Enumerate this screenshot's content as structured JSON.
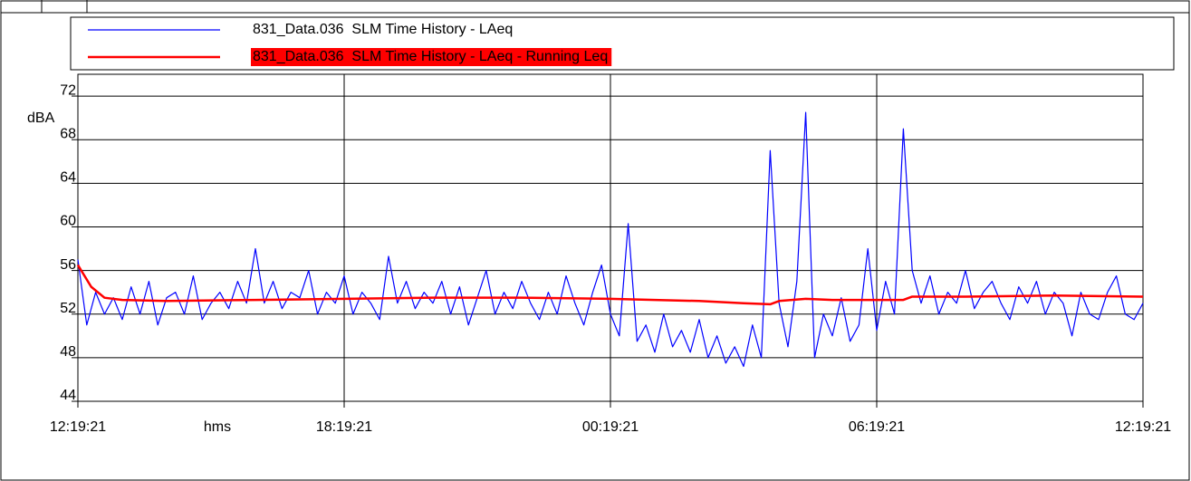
{
  "chart_data": {
    "type": "line",
    "xlabel": "hms",
    "ylabel": "dBA",
    "xlim": [
      0,
      24
    ],
    "xticks": [
      {
        "value": 0,
        "label": "12:19:21"
      },
      {
        "value": 6,
        "label": "18:19:21"
      },
      {
        "value": 12,
        "label": "00:19:21"
      },
      {
        "value": 18,
        "label": "06:19:21"
      },
      {
        "value": 24,
        "label": "12:19:21"
      }
    ],
    "ylim": [
      44,
      74
    ],
    "yticks": [
      44,
      48,
      52,
      56,
      60,
      64,
      68,
      72
    ],
    "grid": true,
    "legend": "top",
    "series": [
      {
        "name": "831_Data.036  SLM Time History - LAeq",
        "color": "#0000ff",
        "x": [
          0,
          0.2,
          0.4,
          0.6,
          0.8,
          1,
          1.2,
          1.4,
          1.6,
          1.8,
          2,
          2.2,
          2.4,
          2.6,
          2.8,
          3,
          3.2,
          3.4,
          3.6,
          3.8,
          4,
          4.2,
          4.4,
          4.6,
          4.8,
          5,
          5.2,
          5.4,
          5.6,
          5.8,
          6,
          6.2,
          6.4,
          6.6,
          6.8,
          7,
          7.2,
          7.4,
          7.6,
          7.8,
          8,
          8.2,
          8.4,
          8.6,
          8.8,
          9,
          9.2,
          9.4,
          9.6,
          9.8,
          10,
          10.2,
          10.4,
          10.6,
          10.8,
          11,
          11.2,
          11.4,
          11.6,
          11.8,
          12,
          12.2,
          12.4,
          12.6,
          12.8,
          13,
          13.2,
          13.4,
          13.6,
          13.8,
          14,
          14.2,
          14.4,
          14.6,
          14.8,
          15,
          15.2,
          15.4,
          15.6,
          15.8,
          16,
          16.2,
          16.4,
          16.6,
          16.8,
          17,
          17.2,
          17.4,
          17.6,
          17.8,
          18,
          18.2,
          18.4,
          18.6,
          18.8,
          19,
          19.2,
          19.4,
          19.6,
          19.8,
          20,
          20.2,
          20.4,
          20.6,
          20.8,
          21,
          21.2,
          21.4,
          21.6,
          21.8,
          22,
          22.2,
          22.4,
          22.6,
          22.8,
          23,
          23.2,
          23.4,
          23.6,
          23.8,
          24
        ],
        "values": [
          57,
          51,
          54,
          52,
          53.5,
          51.5,
          54.5,
          52,
          55,
          51,
          53.5,
          54,
          52,
          55.5,
          51.5,
          53,
          54,
          52.5,
          55,
          53,
          58,
          53,
          55,
          52.5,
          54,
          53.5,
          56,
          52,
          54,
          53,
          55.5,
          52,
          54,
          53,
          51.5,
          57.3,
          53,
          55,
          52.5,
          54,
          53,
          55,
          52,
          54.5,
          51,
          53.5,
          56,
          52,
          54,
          52.5,
          55,
          53,
          51.5,
          54,
          52,
          55.5,
          53,
          51,
          54,
          56.5,
          52,
          50,
          60.3,
          49.5,
          51,
          48.5,
          52,
          49,
          50.5,
          48.5,
          51.5,
          48,
          50,
          47.5,
          49,
          47.2,
          51,
          48,
          67,
          53,
          49,
          55,
          70.5,
          48,
          52,
          50,
          53.5,
          49.5,
          51,
          58,
          50.5,
          55,
          52,
          69,
          56,
          53,
          55.5,
          52,
          54,
          53,
          56,
          52.5,
          54,
          55,
          53,
          51.5,
          54.5,
          53,
          55,
          52,
          54,
          53,
          50,
          54,
          52,
          51.5,
          54,
          55.5,
          52,
          51.5,
          53
        ]
      },
      {
        "name": "831_Data.036  SLM Time History - LAeq - Running Leq",
        "color": "#ff0000",
        "x": [
          0,
          0.3,
          0.6,
          1,
          2,
          4,
          6,
          8,
          10,
          12,
          13,
          14,
          15,
          15.6,
          15.8,
          16.4,
          17,
          18,
          18.6,
          18.8,
          20,
          22,
          24
        ],
        "values": [
          56.5,
          54.5,
          53.5,
          53.3,
          53.2,
          53.3,
          53.4,
          53.5,
          53.5,
          53.4,
          53.3,
          53.2,
          53.0,
          52.9,
          53.2,
          53.4,
          53.3,
          53.3,
          53.3,
          53.6,
          53.6,
          53.7,
          53.6
        ]
      }
    ]
  }
}
